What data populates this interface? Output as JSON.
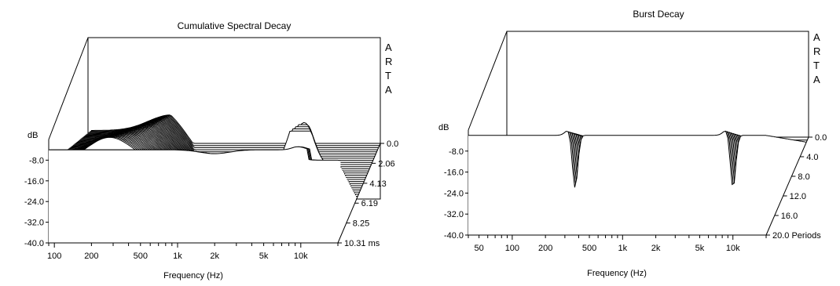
{
  "chart_data": [
    {
      "type": "waterfall",
      "title": "Cumulative Spectral Decay",
      "xlabel": "Frequency (Hz)",
      "ylabel": "dB",
      "x_scale": "log",
      "xlim": [
        90,
        20000
      ],
      "ylim": [
        -40,
        0
      ],
      "x_ticks": [
        "100",
        "200",
        "500",
        "1k",
        "2k",
        "5k",
        "10k"
      ],
      "y_ticks": [
        "-8.0",
        "-16.0",
        "-24.0",
        "-32.0",
        "-40.0"
      ],
      "z_label_first": "0.0",
      "z_ticks": [
        "2.06",
        "4.13",
        "6.19",
        "8.25",
        "10.31 ms"
      ],
      "z_range": [
        0,
        10.31
      ],
      "brand_letters": [
        "A",
        "R",
        "T",
        "A"
      ]
    },
    {
      "type": "waterfall",
      "title": "Burst Decay",
      "xlabel": "Frequency (Hz)",
      "ylabel": "dB",
      "x_scale": "log",
      "xlim": [
        40,
        20000
      ],
      "ylim": [
        -40,
        0
      ],
      "x_ticks": [
        "50",
        "100",
        "200",
        "500",
        "1k",
        "2k",
        "5k",
        "10k"
      ],
      "y_ticks": [
        "-8.0",
        "-16.0",
        "-24.0",
        "-32.0",
        "-40.0"
      ],
      "z_label_first": "0.0",
      "z_ticks": [
        "4.0",
        "8.0",
        "12.0",
        "16.0",
        "20.0 Periods"
      ],
      "z_range": [
        0,
        20
      ],
      "brand_letters": [
        "A",
        "R",
        "T",
        "A"
      ]
    }
  ]
}
